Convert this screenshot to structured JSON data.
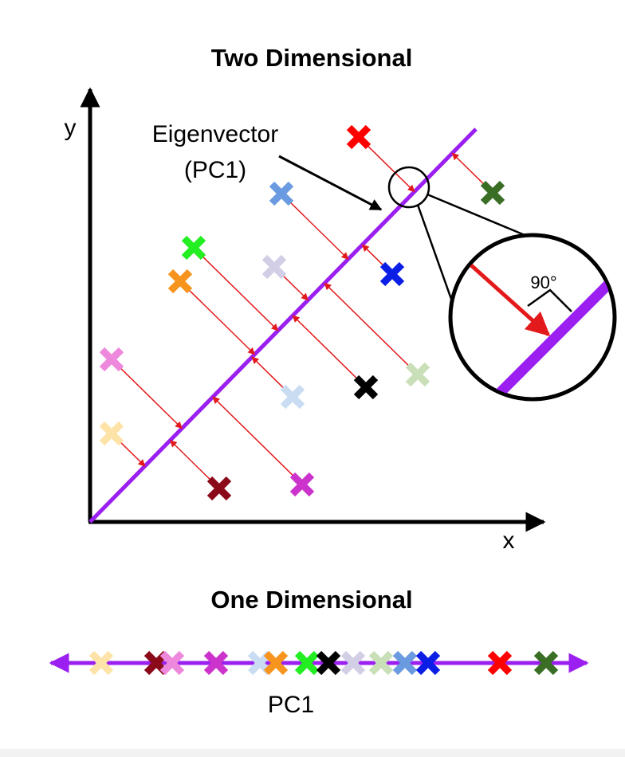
{
  "top": {
    "title": "Two Dimensional",
    "y_label": "y",
    "x_label": "x",
    "annotation": [
      "Eigenvector",
      "(PC1)"
    ],
    "angle_label": "90°"
  },
  "bottom": {
    "title": "One Dimensional",
    "axis_label": "PC1"
  }
}
